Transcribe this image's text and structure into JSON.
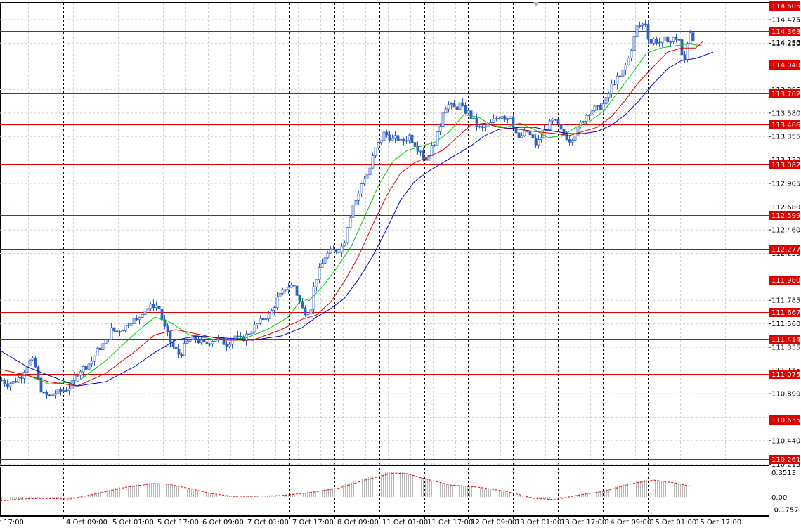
{
  "chart_data": {
    "type": "candlestick",
    "symbol_timeframe": "",
    "price_axis": {
      "ylim": [
        110.2,
        114.64
      ],
      "tick_labels": [
        "114.475",
        "114.250",
        "113.805",
        "113.580",
        "113.355",
        "113.130",
        "112.905",
        "112.680",
        "112.460",
        "112.235",
        "111.785",
        "111.560",
        "111.335",
        "111.115",
        "110.890",
        "110.665",
        "110.440",
        "110.215"
      ]
    },
    "time_axis": {
      "labels": [
        "4 Oct 09:00",
        "5 Oct 01:00",
        "5 Oct 17:00",
        "6 Oct 09:00",
        "7 Oct 01:00",
        "7 Oct 17:00",
        "8 Oct 09:00",
        "11 Oct 01:00",
        "11 Oct 17:00",
        "12 Oct 09:00",
        "13 Oct 01:00",
        "13 Oct 17:00",
        "14 Oct 09:00",
        "15 Oct 01:00",
        "15 Oct 17:00"
      ],
      "edge_label": "t 17:00"
    },
    "horizontal_levels": [
      "114.605",
      "114.363",
      "114.040",
      "113.762",
      "113.466",
      "113.082",
      "112.599",
      "112.277",
      "111.980",
      "111.667",
      "111.414",
      "111.075",
      "110.635",
      "110.261"
    ],
    "price_labels_partial": [
      "114.255"
    ],
    "close_path": [
      [
        0,
        111.02
      ],
      [
        10,
        110.98
      ],
      [
        20,
        111.0
      ],
      [
        30,
        111.06
      ],
      [
        40,
        111.2
      ],
      [
        48,
        111.2
      ],
      [
        54,
        111.02
      ],
      [
        60,
        110.88
      ],
      [
        70,
        110.86
      ],
      [
        80,
        110.9
      ],
      [
        90,
        110.92
      ],
      [
        100,
        110.95
      ],
      [
        108,
        111.08
      ],
      [
        115,
        111.12
      ],
      [
        122,
        111.15
      ],
      [
        130,
        111.2
      ],
      [
        138,
        111.3
      ],
      [
        145,
        111.35
      ],
      [
        152,
        111.4
      ],
      [
        158,
        111.5
      ],
      [
        165,
        111.48
      ],
      [
        172,
        111.5
      ],
      [
        180,
        111.55
      ],
      [
        188,
        111.6
      ],
      [
        195,
        111.58
      ],
      [
        200,
        111.66
      ],
      [
        208,
        111.7
      ],
      [
        214,
        111.72
      ],
      [
        220,
        111.74
      ],
      [
        226,
        111.7
      ],
      [
        232,
        111.55
      ],
      [
        238,
        111.45
      ],
      [
        244,
        111.35
      ],
      [
        250,
        111.3
      ],
      [
        256,
        111.25
      ],
      [
        262,
        111.34
      ],
      [
        268,
        111.4
      ],
      [
        276,
        111.42
      ],
      [
        284,
        111.38
      ],
      [
        292,
        111.36
      ],
      [
        300,
        111.4
      ],
      [
        308,
        111.42
      ],
      [
        316,
        111.38
      ],
      [
        322,
        111.36
      ],
      [
        328,
        111.4
      ],
      [
        334,
        111.44
      ],
      [
        340,
        111.4
      ],
      [
        346,
        111.42
      ],
      [
        352,
        111.46
      ],
      [
        358,
        111.5
      ],
      [
        364,
        111.54
      ],
      [
        370,
        111.58
      ],
      [
        376,
        111.62
      ],
      [
        382,
        111.64
      ],
      [
        388,
        111.7
      ],
      [
        394,
        111.8
      ],
      [
        400,
        111.84
      ],
      [
        406,
        111.9
      ],
      [
        412,
        111.92
      ],
      [
        418,
        111.92
      ],
      [
        424,
        111.8
      ],
      [
        430,
        111.7
      ],
      [
        436,
        111.66
      ],
      [
        442,
        111.72
      ],
      [
        446,
        111.9
      ],
      [
        450,
        112.0
      ],
      [
        456,
        112.1
      ],
      [
        462,
        112.2
      ],
      [
        468,
        112.24
      ],
      [
        474,
        112.26
      ],
      [
        480,
        112.26
      ],
      [
        486,
        112.3
      ],
      [
        490,
        112.36
      ],
      [
        494,
        112.5
      ],
      [
        498,
        112.6
      ],
      [
        502,
        112.7
      ],
      [
        506,
        112.74
      ],
      [
        510,
        112.8
      ],
      [
        514,
        112.9
      ],
      [
        518,
        112.96
      ],
      [
        524,
        113.0
      ],
      [
        528,
        113.1
      ],
      [
        532,
        113.2
      ],
      [
        536,
        113.26
      ],
      [
        540,
        113.3
      ],
      [
        546,
        113.38
      ],
      [
        552,
        113.36
      ],
      [
        558,
        113.32
      ],
      [
        564,
        113.34
      ],
      [
        570,
        113.3
      ],
      [
        576,
        113.32
      ],
      [
        582,
        113.36
      ],
      [
        588,
        113.3
      ],
      [
        594,
        113.24
      ],
      [
        600,
        113.22
      ],
      [
        604,
        113.1
      ],
      [
        608,
        113.16
      ],
      [
        612,
        113.22
      ],
      [
        618,
        113.3
      ],
      [
        624,
        113.4
      ],
      [
        630,
        113.6
      ],
      [
        636,
        113.66
      ],
      [
        642,
        113.64
      ],
      [
        648,
        113.62
      ],
      [
        654,
        113.66
      ],
      [
        660,
        113.6
      ],
      [
        666,
        113.58
      ],
      [
        672,
        113.52
      ],
      [
        678,
        113.46
      ],
      [
        684,
        113.42
      ],
      [
        690,
        113.44
      ],
      [
        696,
        113.46
      ],
      [
        702,
        113.5
      ],
      [
        708,
        113.54
      ],
      [
        714,
        113.56
      ],
      [
        720,
        113.52
      ],
      [
        726,
        113.56
      ],
      [
        732,
        113.42
      ],
      [
        738,
        113.32
      ],
      [
        744,
        113.38
      ],
      [
        750,
        113.4
      ],
      [
        756,
        113.34
      ],
      [
        762,
        113.28
      ],
      [
        768,
        113.32
      ],
      [
        774,
        113.4
      ],
      [
        780,
        113.46
      ],
      [
        786,
        113.5
      ],
      [
        792,
        113.48
      ],
      [
        798,
        113.4
      ],
      [
        804,
        113.36
      ],
      [
        810,
        113.32
      ],
      [
        816,
        113.36
      ],
      [
        822,
        113.42
      ],
      [
        828,
        113.5
      ],
      [
        834,
        113.56
      ],
      [
        840,
        113.6
      ],
      [
        846,
        113.62
      ],
      [
        852,
        113.62
      ],
      [
        858,
        113.66
      ],
      [
        864,
        113.72
      ],
      [
        870,
        113.84
      ],
      [
        876,
        113.9
      ],
      [
        882,
        113.92
      ],
      [
        888,
        114.0
      ],
      [
        894,
        114.1
      ],
      [
        900,
        114.25
      ],
      [
        906,
        114.4
      ],
      [
        912,
        114.42
      ],
      [
        918,
        114.44
      ],
      [
        924,
        114.24
      ],
      [
        930,
        114.28
      ],
      [
        936,
        114.26
      ],
      [
        942,
        114.24
      ],
      [
        948,
        114.3
      ],
      [
        954,
        114.26
      ],
      [
        960,
        114.3
      ],
      [
        966,
        114.28
      ],
      [
        970,
        114.12
      ],
      [
        974,
        114.08
      ],
      [
        978,
        114.26
      ],
      [
        982,
        114.36
      ],
      [
        986,
        114.3
      ]
    ],
    "moving_averages": [
      {
        "color": "#00c800",
        "points": [
          [
            0,
            111.06
          ],
          [
            40,
            111.06
          ],
          [
            70,
            110.98
          ],
          [
            110,
            111.0
          ],
          [
            150,
            111.2
          ],
          [
            190,
            111.45
          ],
          [
            220,
            111.62
          ],
          [
            240,
            111.58
          ],
          [
            270,
            111.45
          ],
          [
            310,
            111.4
          ],
          [
            350,
            111.42
          ],
          [
            380,
            111.5
          ],
          [
            410,
            111.62
          ],
          [
            430,
            111.8
          ],
          [
            440,
            111.78
          ],
          [
            460,
            111.92
          ],
          [
            480,
            112.1
          ],
          [
            500,
            112.3
          ],
          [
            520,
            112.6
          ],
          [
            540,
            112.9
          ],
          [
            560,
            113.12
          ],
          [
            580,
            113.22
          ],
          [
            600,
            113.26
          ],
          [
            620,
            113.3
          ],
          [
            640,
            113.4
          ],
          [
            660,
            113.56
          ],
          [
            680,
            113.54
          ],
          [
            700,
            113.46
          ],
          [
            720,
            113.44
          ],
          [
            740,
            113.48
          ],
          [
            760,
            113.42
          ],
          [
            780,
            113.34
          ],
          [
            800,
            113.36
          ],
          [
            820,
            113.44
          ],
          [
            840,
            113.5
          ],
          [
            860,
            113.6
          ],
          [
            880,
            113.78
          ],
          [
            900,
            113.96
          ],
          [
            920,
            114.15
          ],
          [
            940,
            114.2
          ],
          [
            960,
            114.22
          ],
          [
            980,
            114.24
          ],
          [
            1000,
            114.22
          ]
        ]
      },
      {
        "color": "#e00000",
        "points": [
          [
            0,
            111.12
          ],
          [
            40,
            111.06
          ],
          [
            70,
            111.0
          ],
          [
            110,
            110.96
          ],
          [
            150,
            111.08
          ],
          [
            190,
            111.28
          ],
          [
            220,
            111.45
          ],
          [
            250,
            111.5
          ],
          [
            280,
            111.46
          ],
          [
            320,
            111.4
          ],
          [
            360,
            111.4
          ],
          [
            400,
            111.5
          ],
          [
            430,
            111.6
          ],
          [
            450,
            111.64
          ],
          [
            470,
            111.76
          ],
          [
            490,
            111.96
          ],
          [
            510,
            112.2
          ],
          [
            530,
            112.5
          ],
          [
            550,
            112.78
          ],
          [
            570,
            113.0
          ],
          [
            590,
            113.1
          ],
          [
            610,
            113.16
          ],
          [
            630,
            113.22
          ],
          [
            650,
            113.34
          ],
          [
            670,
            113.46
          ],
          [
            690,
            113.48
          ],
          [
            710,
            113.44
          ],
          [
            740,
            113.42
          ],
          [
            760,
            113.4
          ],
          [
            790,
            113.38
          ],
          [
            810,
            113.36
          ],
          [
            830,
            113.4
          ],
          [
            850,
            113.44
          ],
          [
            870,
            113.54
          ],
          [
            890,
            113.7
          ],
          [
            910,
            113.88
          ],
          [
            930,
            114.02
          ],
          [
            950,
            114.16
          ],
          [
            970,
            114.2
          ],
          [
            990,
            114.2
          ],
          [
            1000,
            114.26
          ]
        ]
      },
      {
        "color": "#0000d0",
        "points": [
          [
            0,
            111.3
          ],
          [
            40,
            111.14
          ],
          [
            70,
            111.06
          ],
          [
            110,
            110.96
          ],
          [
            150,
            111.0
          ],
          [
            190,
            111.14
          ],
          [
            220,
            111.28
          ],
          [
            250,
            111.4
          ],
          [
            280,
            111.44
          ],
          [
            320,
            111.42
          ],
          [
            360,
            111.4
          ],
          [
            400,
            111.44
          ],
          [
            430,
            111.52
          ],
          [
            450,
            111.62
          ],
          [
            470,
            111.7
          ],
          [
            490,
            111.8
          ],
          [
            510,
            111.98
          ],
          [
            530,
            112.2
          ],
          [
            550,
            112.46
          ],
          [
            570,
            112.74
          ],
          [
            590,
            112.92
          ],
          [
            610,
            113.02
          ],
          [
            630,
            113.1
          ],
          [
            650,
            113.18
          ],
          [
            670,
            113.26
          ],
          [
            690,
            113.36
          ],
          [
            710,
            113.42
          ],
          [
            740,
            113.44
          ],
          [
            760,
            113.44
          ],
          [
            790,
            113.4
          ],
          [
            810,
            113.38
          ],
          [
            830,
            113.38
          ],
          [
            850,
            113.4
          ],
          [
            870,
            113.46
          ],
          [
            890,
            113.56
          ],
          [
            910,
            113.7
          ],
          [
            930,
            113.86
          ],
          [
            950,
            114.0
          ],
          [
            970,
            114.08
          ],
          [
            990,
            114.1
          ],
          [
            1015,
            114.16
          ]
        ]
      }
    ],
    "oscillator": {
      "tick_labels": [
        "0.3513",
        "0.00",
        "-0.1757"
      ],
      "ylim": [
        -0.26,
        0.41
      ],
      "signal_path": [
        [
          0,
          -0.06
        ],
        [
          30,
          -0.03
        ],
        [
          60,
          -0.02
        ],
        [
          100,
          -0.03
        ],
        [
          140,
          0.05
        ],
        [
          180,
          0.14
        ],
        [
          220,
          0.19
        ],
        [
          240,
          0.18
        ],
        [
          270,
          0.12
        ],
        [
          300,
          0.05
        ],
        [
          330,
          0.01
        ],
        [
          360,
          0.01
        ],
        [
          400,
          0.02
        ],
        [
          440,
          0.06
        ],
        [
          480,
          0.12
        ],
        [
          520,
          0.24
        ],
        [
          560,
          0.34
        ],
        [
          580,
          0.33
        ],
        [
          600,
          0.27
        ],
        [
          640,
          0.17
        ],
        [
          680,
          0.14
        ],
        [
          720,
          0.08
        ],
        [
          760,
          -0.02
        ],
        [
          790,
          -0.04
        ],
        [
          820,
          0.02
        ],
        [
          860,
          0.08
        ],
        [
          900,
          0.19
        ],
        [
          930,
          0.24
        ],
        [
          960,
          0.2
        ],
        [
          985,
          0.15
        ]
      ]
    }
  }
}
